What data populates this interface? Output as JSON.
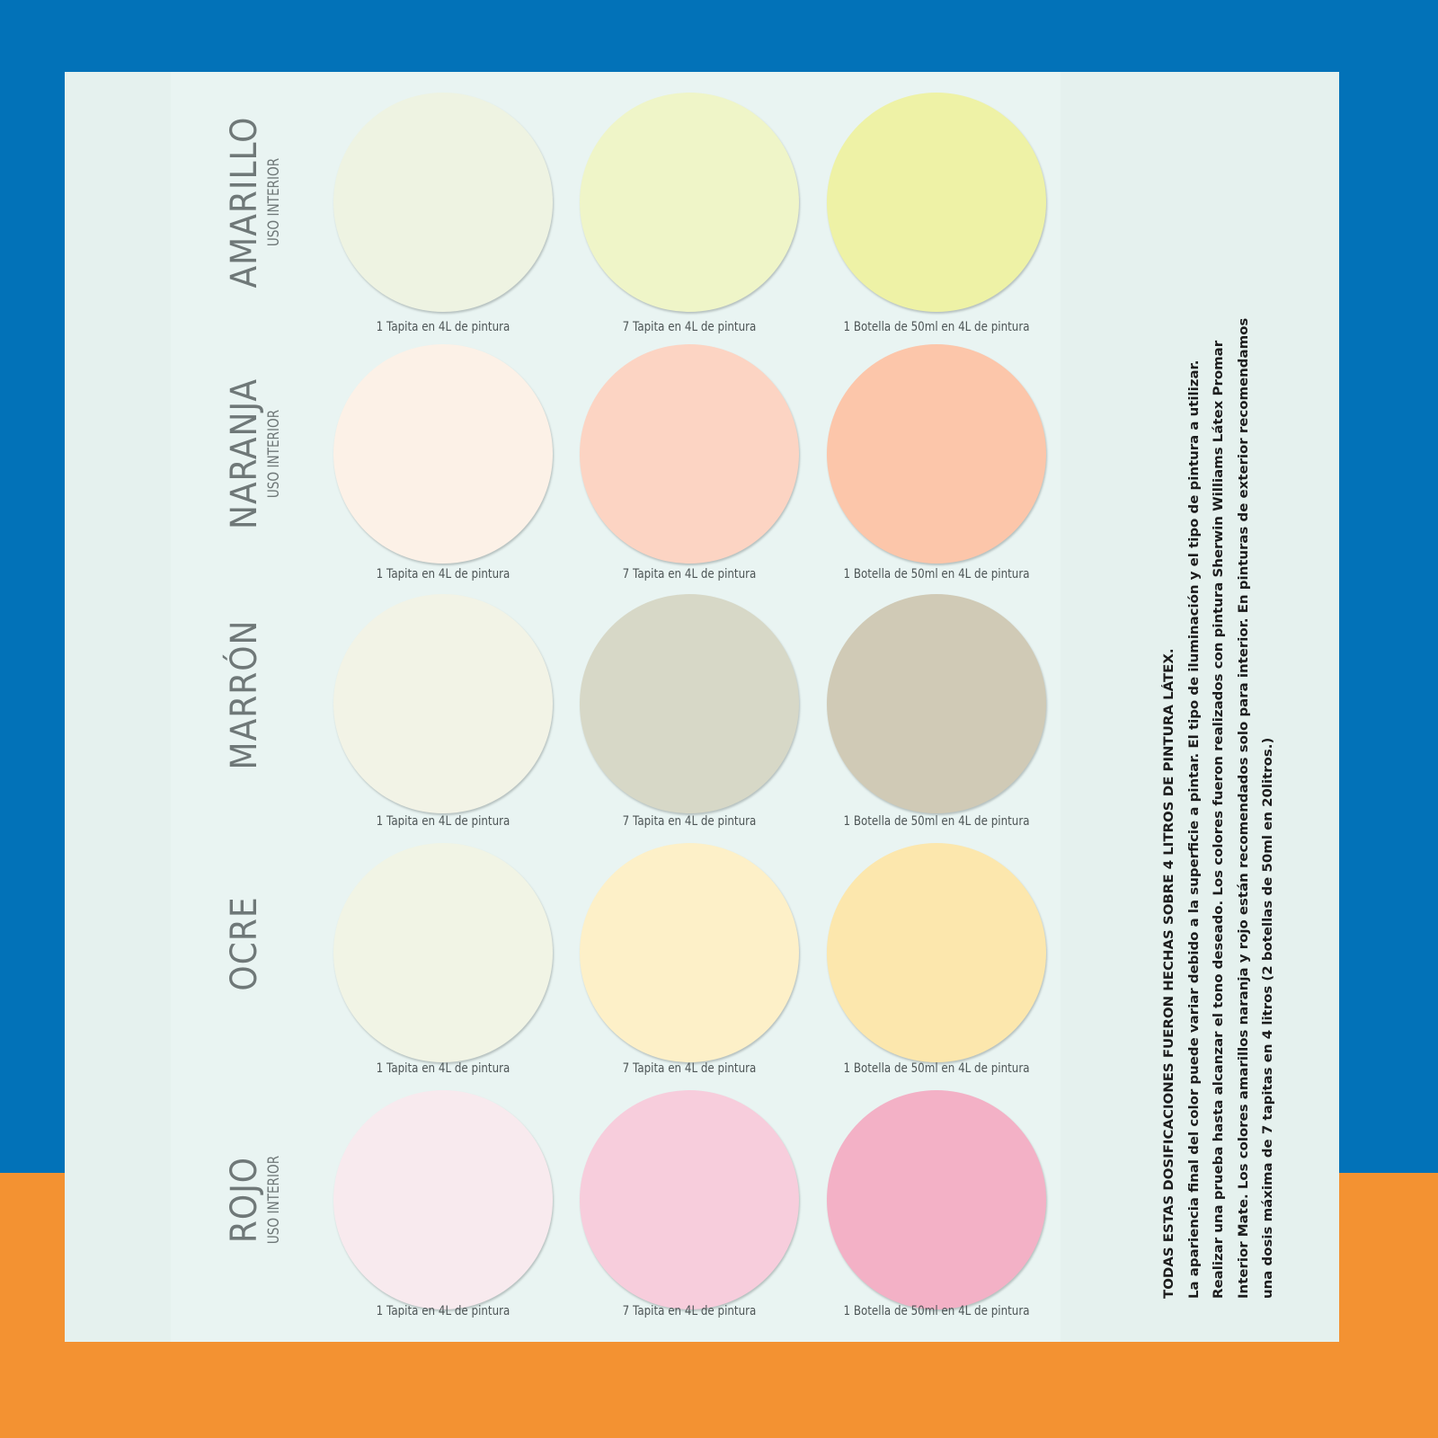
{
  "colors": {
    "top_band": "#0272b8",
    "bottom_band": "#f39232",
    "panel": "#e5f1ee"
  },
  "rows": [
    {
      "name": "AMARILLO",
      "sub": "USO INTERIOR",
      "swatches": [
        {
          "caption": "1 Tapita en 4L de pintura",
          "color": "#eef3e2"
        },
        {
          "caption": "7 Tapita en 4L de pintura",
          "color": "#eff5c8"
        },
        {
          "caption": "1 Botella de 50ml en 4L de pintura",
          "color": "#eef2a6"
        }
      ]
    },
    {
      "name": "NARANJA",
      "sub": "USO INTERIOR",
      "swatches": [
        {
          "caption": "1 Tapita en 4L de pintura",
          "color": "#fcf1e7"
        },
        {
          "caption": "7 Tapita en 4L de pintura",
          "color": "#fcd4c3"
        },
        {
          "caption": "1 Botella de 50ml en 4L de pintura",
          "color": "#fcc6aa"
        }
      ]
    },
    {
      "name": "MARRÓN",
      "sub": "",
      "swatches": [
        {
          "caption": "1 Tapita en 4L de pintura",
          "color": "#f2f3e6"
        },
        {
          "caption": "7 Tapita en 4L de pintura",
          "color": "#d7d8c7"
        },
        {
          "caption": "1 Botella de 50ml en 4L de pintura",
          "color": "#d0cab6"
        }
      ]
    },
    {
      "name": "OCRE",
      "sub": "",
      "swatches": [
        {
          "caption": "1 Tapita en 4L de pintura",
          "color": "#f1f4e5"
        },
        {
          "caption": "7 Tapita en 4L de pintura",
          "color": "#fdf0c8"
        },
        {
          "caption": "1 Botella de 50ml en 4L de pintura",
          "color": "#fce7ad"
        }
      ]
    },
    {
      "name": "ROJO",
      "sub": "USO INTERIOR",
      "swatches": [
        {
          "caption": "1 Tapita en 4L de pintura",
          "color": "#f8eaee"
        },
        {
          "caption": "7 Tapita en 4L de pintura",
          "color": "#f7cddc"
        },
        {
          "caption": "1 Botella de 50ml en 4L de pintura",
          "color": "#f3b1c6"
        }
      ]
    }
  ],
  "notes": [
    "TODAS ESTAS DOSIFICACIONES FUERON HECHAS SOBRE 4 LITROS DE PINTURA LÁTEX.",
    "La apariencia final del color puede variar debido a la superficie a pintar. El tipo de iluminación y el tipo de pintura a utilizar.",
    "Realizar una prueba hasta alcanzar el tono deseado. Los colores fueron realizados con pintura Sherwin Williams Látex Promar",
    "Interior Mate. Los colores amarillos naranja y rojo están recomendados solo para interior. En pinturas de exterior recomendamos",
    "una dosis máxima de 7 tapitas en 4 litros (2 botellas de 50ml en 20litros.)"
  ]
}
